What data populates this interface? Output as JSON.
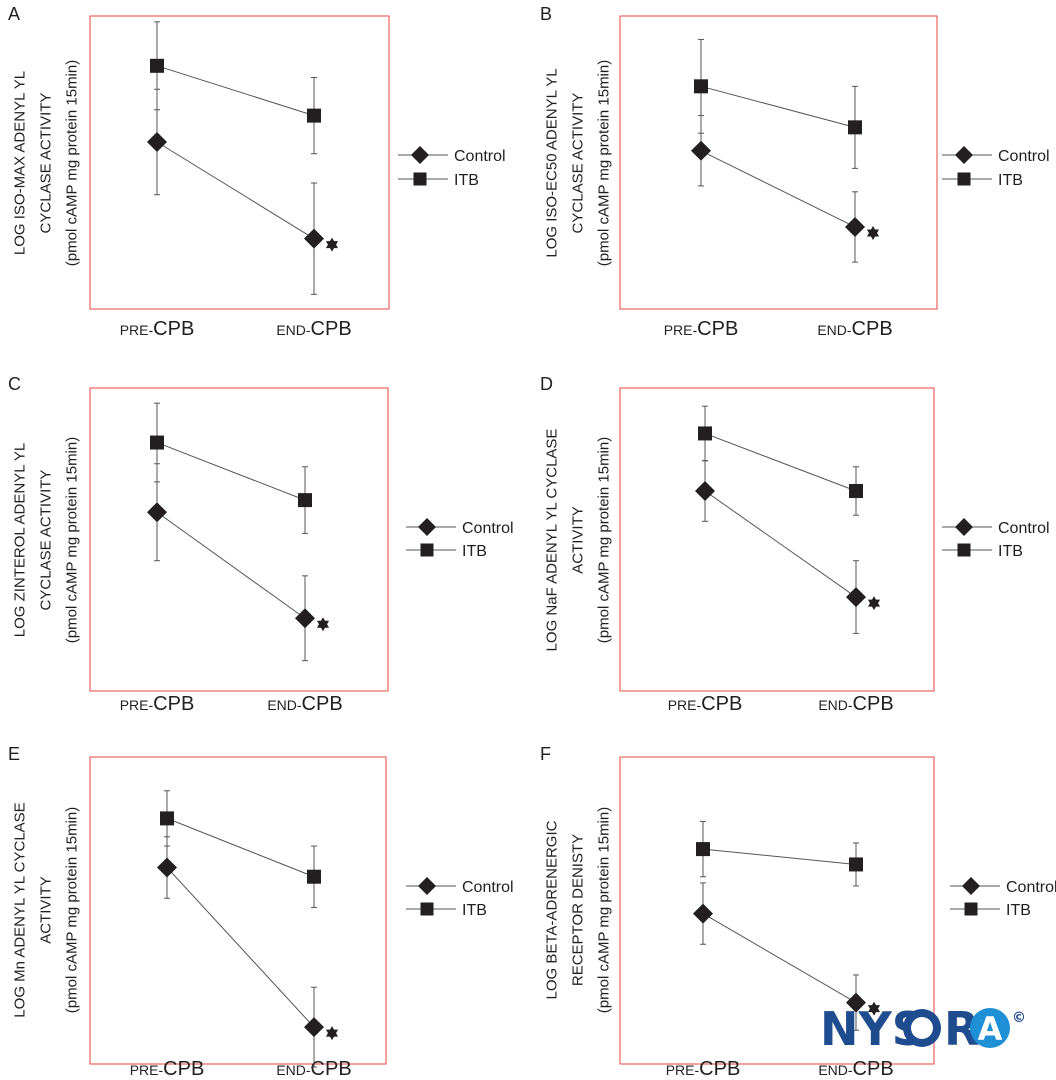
{
  "figure": {
    "watermark": {
      "text_left": "NYS",
      "text_o": "O",
      "text_r": "R",
      "text_a": "A",
      "copyright": "©",
      "color": "#1f4b8f"
    }
  },
  "chart_data": [
    {
      "panel": "A",
      "type": "line",
      "ylabel_lines": [
        "LOG ISO-MAX ADENYL YL",
        "CYCLASE ACTIVITY",
        "(pmol cAMP mg protein 15min)"
      ],
      "x_categories": [
        {
          "small": "PRE-",
          "big": "CPB"
        },
        {
          "small": "END-",
          "big": "CPB"
        }
      ],
      "ylim": [
        0,
        100
      ],
      "series": [
        {
          "name": "Control",
          "marker": "diamond",
          "values": [
            57,
            24
          ],
          "err": [
            18,
            19
          ]
        },
        {
          "name": "ITB",
          "marker": "square",
          "values": [
            83,
            66
          ],
          "err": [
            15,
            13
          ]
        }
      ],
      "significance": [
        "",
        "*"
      ],
      "legend": [
        "Control",
        "ITB"
      ]
    },
    {
      "panel": "B",
      "type": "line",
      "ylabel_lines": [
        "LOG ISO-EC50 ADENYL YL",
        "CYCLASE ACTIVITY",
        "(pmol cAMP mg protein 15min)"
      ],
      "x_categories": [
        {
          "small": "PRE-",
          "big": "CPB"
        },
        {
          "small": "END-",
          "big": "CPB"
        }
      ],
      "ylim": [
        0,
        100
      ],
      "series": [
        {
          "name": "Control",
          "marker": "diamond",
          "values": [
            54,
            28
          ],
          "err": [
            12,
            12
          ]
        },
        {
          "name": "ITB",
          "marker": "square",
          "values": [
            76,
            62
          ],
          "err": [
            16,
            14
          ]
        }
      ],
      "significance": [
        "",
        "*"
      ],
      "legend": [
        "Control",
        "ITB"
      ]
    },
    {
      "panel": "C",
      "type": "line",
      "ylabel_lines": [
        "LOG ZINTEROL ADENYL YL",
        "CYCLASE ACTIVITY",
        "(pmol cAMP mg protein 15min)"
      ],
      "x_categories": [
        {
          "small": "PRE-",
          "big": "CPB"
        },
        {
          "small": "END-",
          "big": "CPB"
        }
      ],
      "ylim": [
        0,
        100
      ],
      "series": [
        {
          "name": "Control",
          "marker": "diamond",
          "values": [
            59,
            24
          ],
          "err": [
            16,
            14
          ]
        },
        {
          "name": "ITB",
          "marker": "square",
          "values": [
            82,
            63
          ],
          "err": [
            13,
            11
          ]
        }
      ],
      "significance": [
        "",
        "*"
      ],
      "legend": [
        "Control",
        "ITB"
      ]
    },
    {
      "panel": "D",
      "type": "line",
      "ylabel_lines": [
        "LOG NaF ADENYL YL CYCLASE",
        "ACTIVITY",
        "(pmol cAMP mg protein 15min)"
      ],
      "x_categories": [
        {
          "small": "PRE-",
          "big": "CPB"
        },
        {
          "small": "END-",
          "big": "CPB"
        }
      ],
      "ylim": [
        0,
        100
      ],
      "series": [
        {
          "name": "Control",
          "marker": "diamond",
          "values": [
            66,
            31
          ],
          "err": [
            10,
            12
          ]
        },
        {
          "name": "ITB",
          "marker": "square",
          "values": [
            85,
            66
          ],
          "err": [
            9,
            8
          ]
        }
      ],
      "significance": [
        "",
        "*"
      ],
      "legend": [
        "Control",
        "ITB"
      ]
    },
    {
      "panel": "E",
      "type": "line",
      "ylabel_lines": [
        "LOG Mn ADENYL YL CYCLASE",
        "ACTIVITY",
        "(pmol cAMP mg protein 15min)"
      ],
      "x_categories": [
        {
          "small": "PRE-",
          "big": "CPB"
        },
        {
          "small": "END-",
          "big": "CPB"
        }
      ],
      "ylim": [
        0,
        100
      ],
      "series": [
        {
          "name": "Control",
          "marker": "diamond",
          "values": [
            64,
            12
          ],
          "err": [
            10,
            13
          ]
        },
        {
          "name": "ITB",
          "marker": "square",
          "values": [
            80,
            61
          ],
          "err": [
            9,
            10
          ]
        }
      ],
      "significance": [
        "",
        "*"
      ],
      "legend": [
        "Control",
        "ITB"
      ]
    },
    {
      "panel": "F",
      "type": "line",
      "ylabel_lines": [
        "LOG BETA-ADRENERGIC",
        "RECEPTOR DENISTY",
        "(pmol cAMP mg protein 15min)"
      ],
      "x_categories": [
        {
          "small": "PRE-",
          "big": "CPB"
        },
        {
          "small": "END-",
          "big": "CPB"
        }
      ],
      "ylim": [
        0,
        100
      ],
      "series": [
        {
          "name": "Control",
          "marker": "diamond",
          "values": [
            49,
            20
          ],
          "err": [
            10,
            9
          ]
        },
        {
          "name": "ITB",
          "marker": "square",
          "values": [
            70,
            65
          ],
          "err": [
            9,
            7
          ]
        }
      ],
      "significance": [
        "",
        "*"
      ],
      "legend": [
        "Control",
        "ITB"
      ]
    }
  ]
}
